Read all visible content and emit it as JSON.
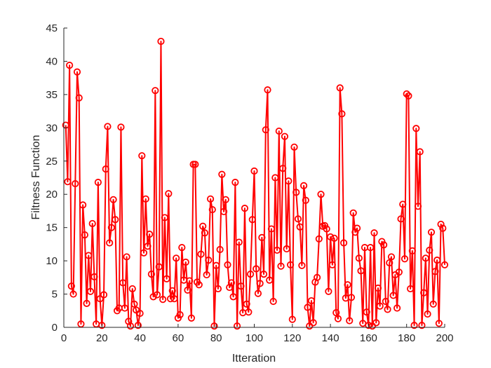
{
  "chart_data": {
    "type": "line",
    "xlabel": "Itteration",
    "ylabel": "Filtness Function",
    "xlim": [
      0,
      200
    ],
    "ylim": [
      0,
      45
    ],
    "xticks": [
      0,
      20,
      40,
      60,
      80,
      100,
      120,
      140,
      160,
      180,
      200
    ],
    "yticks": [
      0,
      5,
      10,
      15,
      20,
      25,
      30,
      35,
      40,
      45
    ],
    "grid": false,
    "marker": "circle",
    "color": "#ff0000",
    "series": [
      {
        "x": [
          1,
          2,
          3,
          4,
          5,
          6,
          7,
          8,
          9,
          10,
          11,
          12,
          13,
          14,
          15,
          16,
          17,
          18,
          19,
          20,
          21,
          22,
          23,
          24,
          25,
          26,
          27,
          28,
          29,
          30,
          31,
          32,
          33,
          34,
          35,
          36,
          37,
          38,
          39,
          40,
          41,
          42,
          43,
          44,
          45,
          46,
          47,
          48,
          49,
          50,
          51,
          52,
          53,
          54,
          55,
          56,
          57,
          58,
          59,
          60,
          61,
          62,
          63,
          64,
          65,
          66,
          67,
          68,
          69,
          70,
          71,
          72,
          73,
          74,
          75,
          76,
          77,
          78,
          79,
          80,
          81,
          82,
          83,
          84,
          85,
          86,
          87,
          88,
          89,
          90,
          91,
          92,
          93,
          94,
          95,
          96,
          97,
          98,
          99,
          100,
          101,
          102,
          103,
          104,
          105,
          106,
          107,
          108,
          109,
          110,
          111,
          112,
          113,
          114,
          115,
          116,
          117,
          118,
          119,
          120,
          121,
          122,
          123,
          124,
          125,
          126,
          127,
          128,
          129,
          130,
          131,
          132,
          133,
          134,
          135,
          136,
          137,
          138,
          139,
          140,
          141,
          142,
          143,
          144,
          145,
          146,
          147,
          148,
          149,
          150,
          151,
          152,
          153,
          154,
          155,
          156,
          157,
          158,
          159,
          160,
          161,
          162,
          163,
          164,
          165,
          166,
          167,
          168,
          169,
          170,
          171,
          172,
          173,
          174,
          175,
          176,
          177,
          178,
          179,
          180,
          181,
          182,
          183,
          184,
          185,
          186,
          187,
          188,
          189,
          190,
          191,
          192,
          193,
          194,
          195,
          196,
          197,
          198,
          199,
          200
        ],
        "y": [
          30.4,
          21.9,
          39.4,
          6.2,
          5.0,
          21.6,
          38.4,
          34.5,
          0.5,
          18.4,
          13.9,
          3.6,
          10.8,
          5.4,
          15.6,
          7.6,
          0.5,
          21.8,
          4.3,
          0.3,
          4.9,
          23.8,
          30.2,
          12.7,
          15.0,
          19.2,
          16.2,
          2.5,
          2.9,
          30.1,
          6.7,
          2.9,
          10.6,
          0.9,
          0.2,
          5.8,
          3.5,
          2.6,
          0.3,
          2.1,
          25.8,
          11.2,
          19.3,
          12.2,
          14.0,
          8.0,
          4.6,
          35.6,
          4.9,
          9.1,
          43.0,
          4.2,
          16.5,
          7.3,
          20.1,
          4.3,
          5.5,
          4.3,
          10.4,
          1.4,
          1.9,
          12.0,
          7.1,
          9.8,
          5.6,
          7.0,
          1.4,
          24.5,
          24.5,
          6.8,
          6.4,
          11.0,
          15.2,
          14.2,
          7.9,
          10.1,
          19.3,
          17.7,
          0.2,
          9.3,
          5.8,
          11.7,
          23.0,
          17.4,
          19.2,
          9.4,
          6.0,
          6.7,
          4.6,
          21.8,
          0.2,
          12.8,
          6.2,
          2.2,
          17.9,
          3.5,
          2.3,
          8.0,
          16.2,
          23.5,
          8.8,
          5.1,
          6.6,
          13.5,
          8.0,
          29.7,
          35.7,
          7.1,
          14.8,
          3.9,
          22.5,
          11.6,
          29.5,
          9.2,
          23.9,
          28.7,
          11.8,
          22.0,
          9.4,
          1.2,
          27.1,
          20.3,
          16.3,
          15.1,
          9.3,
          21.3,
          19.1,
          3.0,
          0.2,
          4.0,
          0.7,
          6.8,
          7.5,
          13.3,
          20.0,
          15.2,
          15.3,
          14.8,
          5.4,
          13.6,
          9.4,
          13.4,
          2.2,
          1.3,
          36.0,
          32.1,
          12.7,
          4.4,
          6.4,
          1.0,
          4.5,
          17.2,
          14.3,
          14.9,
          10.4,
          8.5,
          0.6,
          12.0,
          2.3,
          0.3,
          12.0,
          0.2,
          14.2,
          0.7,
          5.9,
          3.2,
          12.9,
          12.4,
          3.9,
          2.7,
          9.7,
          10.6,
          4.8,
          7.9,
          2.9,
          8.3,
          16.3,
          18.5,
          10.3,
          35.1,
          34.8,
          5.8,
          11.5,
          0.3,
          29.9,
          18.2,
          26.4,
          0.3,
          5.2,
          10.4,
          2.0,
          11.6,
          14.3,
          3.5,
          8.4,
          10.1,
          0.6,
          15.5,
          14.9,
          9.4
        ]
      }
    ]
  }
}
